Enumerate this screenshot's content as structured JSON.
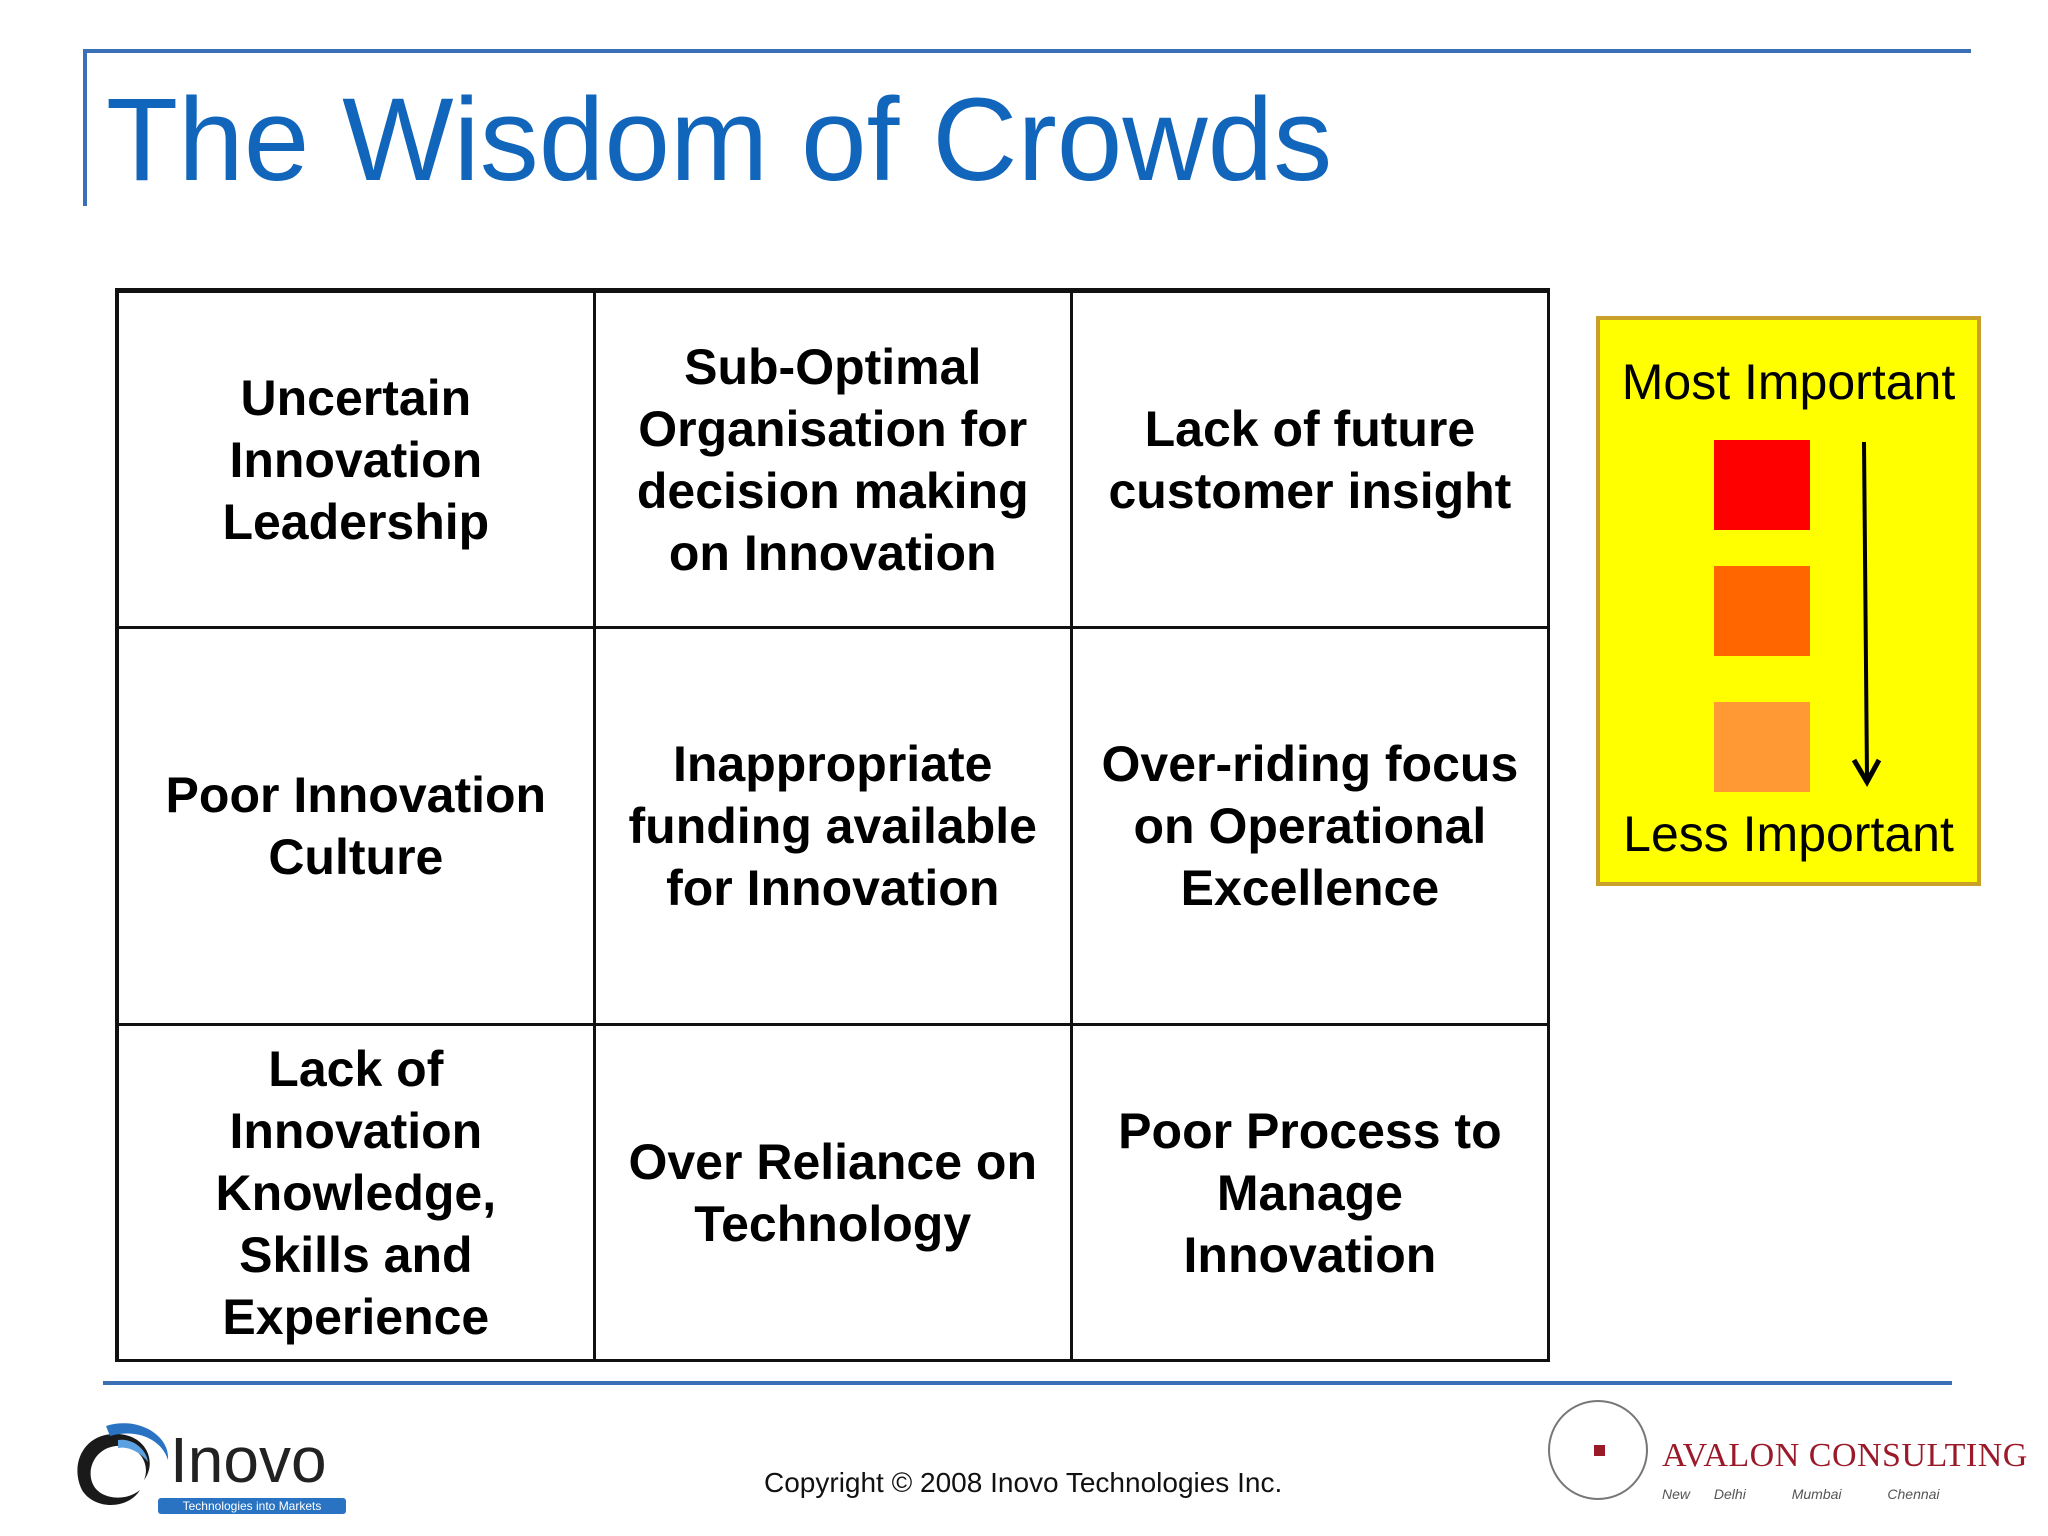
{
  "slide": {
    "title": "The Wisdom of Crowds",
    "grid": {
      "rows": [
        [
          "Uncertain Innovation Leadership",
          "Sub-Optimal Organisation for decision making on Innovation",
          "Lack of future customer insight"
        ],
        [
          "Poor Innovation Culture",
          "Inappropriate funding available for Innovation",
          "Over-riding focus on Operational Excellence"
        ],
        [
          "Lack of Innovation Knowledge, Skills and Experience",
          "Over Reliance on Technology",
          "Poor Process to Manage Innovation"
        ]
      ]
    },
    "legend": {
      "top_label": "Most Important",
      "bottom_label": "Less Important",
      "swatch_colors": [
        "#ff0000",
        "#ff6600",
        "#ff9933"
      ],
      "background": "#ffff00"
    }
  },
  "footer": {
    "copyright": "Copyright © 2008 Inovo Technologies Inc.",
    "inovo_logo": {
      "name": "Inovo",
      "tagline": "Technologies into Markets"
    },
    "avalon_logo": {
      "name": "AVALON CONSULTING",
      "cities": [
        "New Delhi",
        "Mumbai",
        "Chennai"
      ],
      "accent": "#9b1a2a"
    }
  },
  "colors": {
    "title": "#1166bb",
    "rule": "#3b6fb6"
  }
}
